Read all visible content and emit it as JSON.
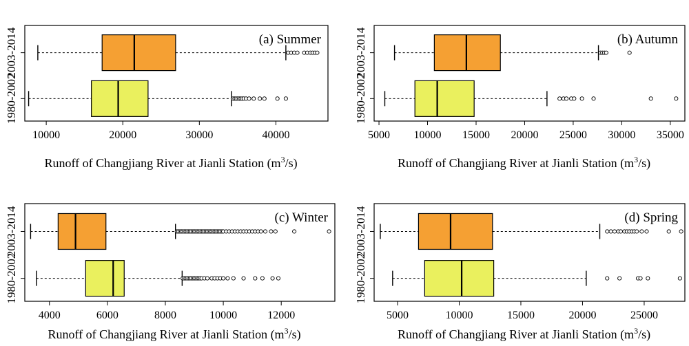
{
  "figure": {
    "xlabel_prefix": "Runoff of Changjiang River at Jianli Station (m",
    "xlabel_sup": "3",
    "xlabel_suffix": "/s)"
  },
  "chart_data": [
    {
      "type": "boxplot",
      "title": "(a) Summer",
      "categories": [
        "2003-2014",
        "1980-2002"
      ],
      "xlim": [
        7200,
        46800
      ],
      "xticks": [
        10000,
        20000,
        30000,
        40000
      ],
      "xtick_labels": [
        "10000",
        "20000",
        "30000",
        "40000"
      ],
      "colors": {
        "2003-2014": "#f5a033",
        "1980-2002": "#eaf05e"
      },
      "series": [
        {
          "name": "2003-2014",
          "whisker_low": 8900,
          "q1": 17300,
          "median": 21500,
          "q3": 26900,
          "whisker_high": 41300,
          "outliers": [
            41600,
            42000,
            42400,
            42800,
            43700,
            44100,
            44500,
            44800,
            45100,
            45400
          ]
        },
        {
          "name": "1980-2002",
          "whisker_low": 7700,
          "q1": 15900,
          "median": 19400,
          "q3": 23300,
          "whisker_high": 34200,
          "outliers": [
            34400,
            34600,
            34800,
            35000,
            35200,
            35400,
            35600,
            35800,
            36100,
            36500,
            37100,
            37900,
            38500,
            40200,
            41300
          ]
        }
      ]
    },
    {
      "type": "boxplot",
      "title": "(b) Autumn",
      "categories": [
        "2003-2014",
        "1980-2002"
      ],
      "xlim": [
        4500,
        36500
      ],
      "xticks": [
        5000,
        10000,
        15000,
        20000,
        25000,
        30000,
        35000
      ],
      "xtick_labels": [
        "5000",
        "10000",
        "15000",
        "20000",
        "25000",
        "30000",
        "35000"
      ],
      "colors": {
        "2003-2014": "#f5a033",
        "1980-2002": "#eaf05e"
      },
      "series": [
        {
          "name": "2003-2014",
          "whisker_low": 6600,
          "q1": 10700,
          "median": 14000,
          "q3": 17500,
          "whisker_high": 27600,
          "outliers": [
            27800,
            28000,
            28200,
            28400,
            30800
          ]
        },
        {
          "name": "1980-2002",
          "whisker_low": 5600,
          "q1": 8700,
          "median": 11000,
          "q3": 14800,
          "whisker_high": 22300,
          "outliers": [
            23600,
            24000,
            24300,
            24800,
            25100,
            25900,
            27100,
            33000,
            35600
          ]
        }
      ]
    },
    {
      "type": "boxplot",
      "title": "(c) Winter",
      "categories": [
        "2003-2014",
        "1980-2002"
      ],
      "xlim": [
        3150,
        13850
      ],
      "xticks": [
        4000,
        6000,
        8000,
        10000,
        12000
      ],
      "xtick_labels": [
        "4000",
        "6000",
        "8000",
        "10000",
        "12000"
      ],
      "colors": {
        "2003-2014": "#f5a033",
        "1980-2002": "#eaf05e"
      },
      "series": [
        {
          "name": "2003-2014",
          "whisker_low": 3350,
          "q1": 4300,
          "median": 4900,
          "q3": 5950,
          "whisker_high": 8350,
          "outliers": [
            8400,
            8450,
            8500,
            8550,
            8600,
            8650,
            8700,
            8750,
            8800,
            8850,
            8900,
            8950,
            9000,
            9050,
            9100,
            9150,
            9200,
            9250,
            9300,
            9350,
            9400,
            9450,
            9500,
            9550,
            9600,
            9650,
            9700,
            9750,
            9800,
            9850,
            9900,
            9950,
            10000,
            10100,
            10200,
            10300,
            10400,
            10500,
            10600,
            10700,
            10800,
            10900,
            11000,
            11100,
            11200,
            11300,
            11450,
            11650,
            11800,
            12450,
            13650
          ]
        },
        {
          "name": "1980-2002",
          "whisker_low": 3550,
          "q1": 5250,
          "median": 6200,
          "q3": 6580,
          "whisker_high": 8580,
          "outliers": [
            8600,
            8650,
            8700,
            8750,
            8800,
            8850,
            8900,
            8950,
            9000,
            9050,
            9100,
            9150,
            9200,
            9250,
            9350,
            9450,
            9600,
            9700,
            9800,
            9900,
            10000,
            10150,
            10350,
            10700,
            11100,
            11350,
            11700,
            11900
          ]
        }
      ]
    },
    {
      "type": "boxplot",
      "title": "(d) Spring",
      "categories": [
        "2003-2014",
        "1980-2002"
      ],
      "xlim": [
        3100,
        28300
      ],
      "xticks": [
        5000,
        10000,
        15000,
        20000,
        25000
      ],
      "xtick_labels": [
        "5000",
        "10000",
        "15000",
        "20000",
        "25000"
      ],
      "colors": {
        "2003-2014": "#f5a033",
        "1980-2002": "#eaf05e"
      },
      "series": [
        {
          "name": "2003-2014",
          "whisker_low": 3600,
          "q1": 6700,
          "median": 9300,
          "q3": 12700,
          "whisker_high": 21400,
          "outliers": [
            22000,
            22300,
            22600,
            22900,
            23100,
            23400,
            23600,
            23800,
            24000,
            24200,
            24400,
            24800,
            25200,
            27000,
            28000
          ]
        },
        {
          "name": "1980-2002",
          "whisker_low": 4600,
          "q1": 7200,
          "median": 10200,
          "q3": 12800,
          "whisker_high": 20300,
          "outliers": [
            22000,
            23000,
            24500,
            24700,
            25300,
            27900
          ]
        }
      ]
    }
  ]
}
